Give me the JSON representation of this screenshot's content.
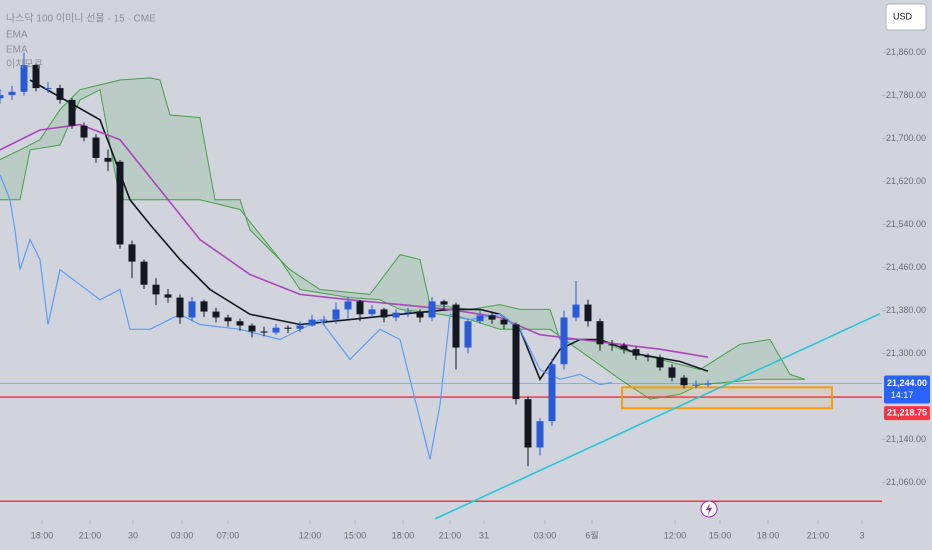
{
  "chart_data": {
    "type": "candlestick",
    "title": "나스닥 100 이미니 선물 · 15 · CME",
    "indicator_labels": [
      "EMA",
      "EMA",
      "이치모쿠"
    ],
    "currency": "USD",
    "x": [
      0,
      3,
      6,
      9,
      12,
      15,
      18,
      21,
      24,
      27,
      30,
      33,
      36,
      39,
      42,
      45,
      48,
      51,
      54,
      57,
      60,
      63,
      66,
      69,
      72,
      75,
      78,
      81,
      84,
      87,
      90,
      93,
      96,
      99,
      102,
      105,
      108,
      111,
      114,
      117,
      120,
      123,
      126,
      129,
      132,
      135,
      138,
      141,
      144,
      147,
      150,
      153,
      156,
      159,
      162,
      165,
      168,
      171,
      174,
      177
    ],
    "open": [
      21775,
      21781,
      21787,
      21837,
      21794,
      21794,
      21772,
      21724,
      21702,
      21664,
      21657,
      21503,
      21471,
      21428,
      21410,
      21404,
      21367,
      21397,
      21378,
      21367,
      21360,
      21352,
      21341,
      21339,
      21348,
      21346,
      21352,
      21363,
      21363,
      21382,
      21397,
      21373,
      21382,
      21367,
      21376,
      21378,
      21367,
      21397,
      21391,
      21311,
      21360,
      21371,
      21363,
      21354,
      21215,
      21125,
      21174,
      21280,
      21367,
      21391,
      21360,
      21317,
      21315,
      21308,
      21296,
      21293,
      21274,
      21255,
      21241,
      21242
    ],
    "high": [
      21792,
      21798,
      21860,
      21840,
      21805,
      21800,
      21775,
      21730,
      21708,
      21680,
      21660,
      21510,
      21475,
      21440,
      21420,
      21410,
      21405,
      21400,
      21385,
      21372,
      21365,
      21356,
      21350,
      21355,
      21352,
      21360,
      21372,
      21370,
      21395,
      21405,
      21400,
      21390,
      21385,
      21382,
      21385,
      21382,
      21405,
      21400,
      21395,
      21365,
      21380,
      21378,
      21365,
      21358,
      21220,
      21180,
      21290,
      21380,
      21435,
      21400,
      21365,
      21325,
      21320,
      21312,
      21300,
      21298,
      21280,
      21260,
      21250,
      21250
    ],
    "low": [
      21765,
      21772,
      21780,
      21788,
      21785,
      21765,
      21718,
      21695,
      21655,
      21640,
      21495,
      21440,
      21420,
      21390,
      21395,
      21355,
      21360,
      21368,
      21358,
      21350,
      21342,
      21330,
      21332,
      21335,
      21338,
      21340,
      21350,
      21352,
      21355,
      21365,
      21360,
      21368,
      21358,
      21360,
      21368,
      21358,
      21360,
      21380,
      21270,
      21300,
      21355,
      21355,
      21345,
      21205,
      21090,
      21110,
      21165,
      21270,
      21360,
      21350,
      21305,
      21305,
      21300,
      21288,
      21285,
      21268,
      21248,
      21235,
      21235,
      21238
    ],
    "close": [
      21781,
      21787,
      21837,
      21794,
      21794,
      21772,
      21724,
      21702,
      21664,
      21657,
      21503,
      21471,
      21428,
      21410,
      21404,
      21367,
      21397,
      21378,
      21367,
      21360,
      21352,
      21341,
      21339,
      21348,
      21346,
      21352,
      21363,
      21363,
      21382,
      21397,
      21373,
      21382,
      21367,
      21376,
      21378,
      21367,
      21397,
      21391,
      21311,
      21360,
      21371,
      21363,
      21354,
      21215,
      21125,
      21174,
      21280,
      21367,
      21391,
      21360,
      21317,
      21315,
      21308,
      21296,
      21293,
      21274,
      21255,
      21241,
      21242,
      21244
    ],
    "up_color": "#2a5bd7",
    "down_color": "#131722",
    "lines": [
      {
        "color": "#131722",
        "x": [
          7.5,
          25,
          32.5,
          37.5,
          45,
          52.5,
          62.5,
          75,
          87.5,
          100,
          112.5,
          120,
          125,
          130,
          135,
          140,
          145,
          150,
          160,
          170,
          177
        ],
        "values": [
          21809,
          21735,
          21586,
          21540,
          21475,
          21419,
          21373,
          21354,
          21363,
          21373,
          21382,
          21382,
          21373,
          21345,
          21252,
          21308,
          21326,
          21326,
          21298,
          21285,
          21267
        ]
      },
      {
        "color": "#ab47bc",
        "x": [
          0,
          10,
          20,
          30,
          40,
          50,
          62.5,
          75,
          87.5,
          100,
          112.5,
          125,
          135,
          145,
          155,
          165,
          177
        ],
        "values": [
          21679,
          21716,
          21726,
          21698,
          21605,
          21512,
          21447,
          21410,
          21400,
          21391,
          21382,
          21367,
          21335,
          21326,
          21317,
          21308,
          21293
        ]
      },
      {
        "color": "#5b9cf6",
        "x": [
          0,
          2.5,
          3.75,
          5,
          7.5,
          10,
          12,
          15,
          20,
          25,
          30,
          32.5,
          37.5,
          45,
          50,
          60,
          70,
          80,
          87.5,
          95,
          100,
          105,
          107.5,
          110,
          112.5,
          117.5,
          125,
          130,
          135,
          140,
          145,
          150,
          153
        ],
        "values": [
          21633,
          21586,
          21530,
          21456,
          21512,
          21475,
          21354,
          21456,
          21428,
          21400,
          21419,
          21345,
          21345,
          21373,
          21354,
          21345,
          21326,
          21363,
          21289,
          21345,
          21326,
          21177,
          21103,
          21205,
          21373,
          21363,
          21373,
          21345,
          21270,
          21252,
          21261,
          21242,
          21246
        ]
      }
    ],
    "cloud": {
      "color": "#43a047",
      "upper": {
        "x": [
          0,
          5,
          10,
          15,
          20,
          25,
          30,
          37.5,
          40,
          42.5,
          50,
          53.75,
          60,
          62.5,
          72.5,
          80,
          92.5,
          100,
          105,
          107.5,
          117.5,
          125,
          130,
          137.5,
          140,
          150,
          155,
          165,
          175,
          185,
          192.5,
          197.5,
          201.25
        ],
        "values": [
          21661,
          21679,
          21698,
          21754,
          21791,
          21800,
          21809,
          21813,
          21809,
          21744,
          21739,
          21586,
          21586,
          21530,
          21456,
          21419,
          21410,
          21484,
          21475,
          21391,
          21382,
          21391,
          21382,
          21382,
          21326,
          21326,
          21308,
          21289,
          21270,
          21317,
          21326,
          21261,
          21252
        ]
      },
      "lower": {
        "x": [
          0,
          5,
          7.5,
          15,
          20,
          25,
          30,
          50,
          60,
          70,
          75,
          87.5,
          95,
          100,
          110,
          117.5,
          125,
          137.5,
          155,
          162.5,
          170,
          175,
          190,
          201.25
        ],
        "values": [
          21586,
          21586,
          21679,
          21688,
          21772,
          21791,
          21586,
          21586,
          21568,
          21475,
          21419,
          21404,
          21400,
          21382,
          21373,
          21363,
          21345,
          21345,
          21252,
          21215,
          21224,
          21242,
          21252,
          21252
        ]
      }
    },
    "trendline": {
      "color": "#26c6da",
      "x": [
        108.75,
        220
      ],
      "values": [
        20992,
        21374
      ]
    },
    "zone": {
      "color": "#f59e0b",
      "x": [
        155.5,
        208
      ],
      "values": [
        21198,
        21237
      ]
    },
    "hlines": [
      {
        "value": 21218.75,
        "label": "21,218.75",
        "color": "#f23645"
      },
      {
        "value": 21025,
        "color": "#f23645"
      }
    ],
    "last_price": {
      "value": 21244,
      "label": "21,244.00",
      "countdown": "14:17",
      "color": "#2962ff"
    },
    "xlim": [
      0,
      233
    ],
    "ylim": [
      20990,
      21958
    ],
    "xticks": [
      {
        "value": 10.5,
        "label": "18:00"
      },
      {
        "value": 22.5,
        "label": "21:00"
      },
      {
        "value": 33.25,
        "label": "30"
      },
      {
        "value": 45.5,
        "label": "03:00"
      },
      {
        "value": 57,
        "label": "07:00"
      },
      {
        "value": 77.5,
        "label": "12:00"
      },
      {
        "value": 88.75,
        "label": "15:00"
      },
      {
        "value": 100.75,
        "label": "18:00"
      },
      {
        "value": 112.5,
        "label": "21:00"
      },
      {
        "value": 121,
        "label": "31"
      },
      {
        "value": 136.25,
        "label": "03:00"
      },
      {
        "value": 148,
        "label": "6월"
      },
      {
        "value": 168.75,
        "label": "12:00"
      },
      {
        "value": 180,
        "label": "15:00"
      },
      {
        "value": 192,
        "label": "18:00"
      },
      {
        "value": 204.5,
        "label": "21:00"
      },
      {
        "value": 215.5,
        "label": "3"
      }
    ],
    "yticks": [
      {
        "value": 21860,
        "label": "21,860.00"
      },
      {
        "value": 21780,
        "label": "21,780.00"
      },
      {
        "value": 21700,
        "label": "21,700.00"
      },
      {
        "value": 21620,
        "label": "21,620.00"
      },
      {
        "value": 21540,
        "label": "21,540.00"
      },
      {
        "value": 21460,
        "label": "21,460.00"
      },
      {
        "value": 21380,
        "label": "21,380.00"
      },
      {
        "value": 21300,
        "label": "21,300.00"
      },
      {
        "value": 21140,
        "label": "21,140.00"
      },
      {
        "value": 21060,
        "label": "21,060.00"
      }
    ]
  }
}
